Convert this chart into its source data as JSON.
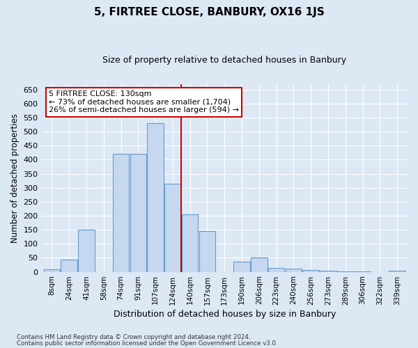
{
  "title": "5, FIRTREE CLOSE, BANBURY, OX16 1JS",
  "subtitle": "Size of property relative to detached houses in Banbury",
  "xlabel": "Distribution of detached houses by size in Banbury",
  "ylabel": "Number of detached properties",
  "bar_labels": [
    "8sqm",
    "24sqm",
    "41sqm",
    "58sqm",
    "74sqm",
    "91sqm",
    "107sqm",
    "124sqm",
    "140sqm",
    "157sqm",
    "173sqm",
    "190sqm",
    "206sqm",
    "223sqm",
    "240sqm",
    "256sqm",
    "273sqm",
    "289sqm",
    "306sqm",
    "322sqm",
    "339sqm"
  ],
  "bar_values": [
    8,
    44,
    150,
    0,
    420,
    420,
    530,
    315,
    205,
    145,
    0,
    35,
    50,
    15,
    12,
    6,
    3,
    1,
    1,
    0,
    5
  ],
  "bar_color": "#c6d8ef",
  "bar_edge_color": "#6699cc",
  "vline_color": "#cc0000",
  "annotation_text": "5 FIRTREE CLOSE: 130sqm\n← 73% of detached houses are smaller (1,704)\n26% of semi-detached houses are larger (594) →",
  "annotation_box_color": "#ffffff",
  "annotation_box_edge_color": "#cc0000",
  "ylim": [
    0,
    670
  ],
  "yticks": [
    0,
    50,
    100,
    150,
    200,
    250,
    300,
    350,
    400,
    450,
    500,
    550,
    600,
    650
  ],
  "footer_line1": "Contains HM Land Registry data © Crown copyright and database right 2024.",
  "footer_line2": "Contains public sector information licensed under the Open Government Licence v3.0.",
  "bg_color": "#dde8f5",
  "plot_bg_color": "#dde8f5",
  "grid_color": "#ffffff",
  "title_fontsize": 11,
  "subtitle_fontsize": 9
}
